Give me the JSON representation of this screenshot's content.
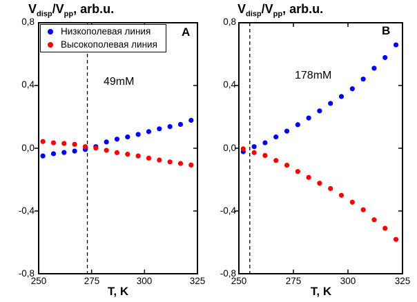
{
  "title_parts": {
    "base": "V",
    "sub1": "disp",
    "mid": "/V",
    "sub2": "pp",
    "tail": ", arb.u."
  },
  "xlabel": "T, K",
  "legend": {
    "items": [
      {
        "label": "Низкополевая линия",
        "color": "#0000ff"
      },
      {
        "label": "Высокополевая линия",
        "color": "#ff0000"
      }
    ]
  },
  "chart_data": [
    {
      "type": "scatter",
      "panel_label": "A",
      "annotation": "49mM",
      "xlabel": "T, K",
      "xlim": [
        250,
        325
      ],
      "ylim": [
        -0.8,
        0.8
      ],
      "xticks": [
        250,
        275,
        300,
        325
      ],
      "xticks_minor_inner": [
        275,
        300
      ],
      "yticks": [
        -0.8,
        -0.4,
        0.0,
        0.4,
        0.8
      ],
      "ytick_labels": [
        "-0,8",
        "-0,4",
        "0,0",
        "0,4",
        "0,8"
      ],
      "yticks_side_marks": [
        -0.4,
        0.0,
        0.4
      ],
      "dashed_line_x": 273,
      "grid": false,
      "legend_position": "top-left-inside",
      "x": [
        252,
        257,
        262,
        267,
        272,
        277,
        282,
        287,
        292,
        297,
        302,
        307,
        312,
        317,
        322
      ],
      "series": [
        {
          "name": "Низкополевая линия",
          "color": "#0000ff",
          "values": [
            -0.049,
            -0.035,
            -0.027,
            -0.018,
            -0.008,
            0.01,
            0.04,
            0.058,
            0.072,
            0.088,
            0.106,
            0.124,
            0.138,
            0.152,
            0.178
          ]
        },
        {
          "name": "Высокополевая линия",
          "color": "#ff0000",
          "values": [
            0.043,
            0.035,
            0.031,
            0.025,
            0.01,
            0.001,
            -0.013,
            -0.028,
            -0.038,
            -0.049,
            -0.063,
            -0.075,
            -0.087,
            -0.097,
            -0.107
          ]
        }
      ]
    },
    {
      "type": "scatter",
      "panel_label": "B",
      "annotation": "178mM",
      "xlabel": "T, K",
      "xlim": [
        250,
        325
      ],
      "ylim": [
        -0.8,
        0.8
      ],
      "xticks": [
        250,
        275,
        300,
        325
      ],
      "xticks_minor_inner": [
        275,
        300
      ],
      "yticks": [
        -0.8,
        -0.4,
        0.0,
        0.4,
        0.8
      ],
      "ytick_labels": [
        "-0,8",
        "-0,4",
        "0,0",
        "0,4",
        "0,8"
      ],
      "yticks_side_marks": [
        -0.4,
        0.0,
        0.4
      ],
      "dashed_line_x": 255,
      "grid": false,
      "legend_position": "none",
      "x": [
        252,
        257,
        262,
        267,
        272,
        277,
        282,
        287,
        292,
        297,
        302,
        307,
        312,
        317,
        322
      ],
      "series": [
        {
          "name": "Низкополевая линия",
          "color": "#0000ff",
          "values": [
            -0.022,
            0.01,
            0.035,
            0.072,
            0.109,
            0.15,
            0.193,
            0.238,
            0.286,
            0.33,
            0.379,
            0.441,
            0.51,
            0.578,
            0.659
          ]
        },
        {
          "name": "Высокополевая линия",
          "color": "#ff0000",
          "values": [
            -0.004,
            -0.028,
            -0.046,
            -0.078,
            -0.108,
            -0.148,
            -0.186,
            -0.223,
            -0.257,
            -0.3,
            -0.344,
            -0.392,
            -0.456,
            -0.51,
            -0.581
          ]
        }
      ]
    }
  ]
}
